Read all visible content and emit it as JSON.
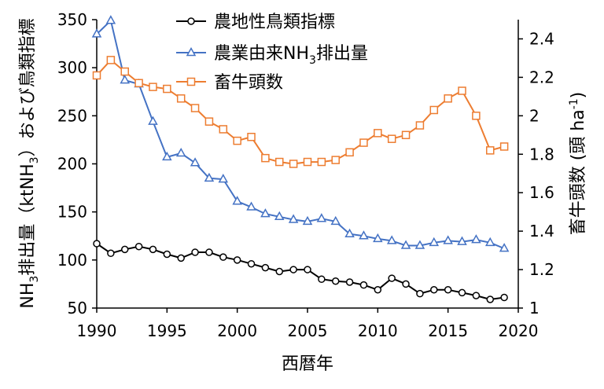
{
  "chart_data": {
    "type": "line",
    "x": [
      1990,
      1991,
      1992,
      1993,
      1994,
      1995,
      1996,
      1997,
      1998,
      1999,
      2000,
      2001,
      2002,
      2003,
      2004,
      2005,
      2006,
      2007,
      2008,
      2009,
      2010,
      2011,
      2012,
      2013,
      2014,
      2015,
      2016,
      2017,
      2018,
      2019
    ],
    "xlabel": "西暦年",
    "ylabel_left_parts": [
      "NH",
      "3",
      "排出量（ktNH",
      "3",
      "）および鳥類指標"
    ],
    "ylabel_right_parts": [
      "畜牛頭数 (頭 ha",
      "-1",
      ")"
    ],
    "xlim": [
      1990,
      2020
    ],
    "ylim_left": [
      50,
      350
    ],
    "ylim_right": [
      1.0,
      2.5
    ],
    "x_ticks": [
      "1990",
      "1995",
      "2000",
      "2005",
      "2010",
      "2015",
      "2020"
    ],
    "y_ticks_left": [
      "50",
      "100",
      "150",
      "200",
      "250",
      "300",
      "350"
    ],
    "y_ticks_right": [
      "1",
      "1.2",
      "1.4",
      "1.6",
      "1.8",
      "2",
      "2.2",
      "2.4"
    ],
    "grid": false,
    "legend_position": "top-center",
    "series": [
      {
        "name": "農地性鳥類指標",
        "axis": "left",
        "color": "#000000",
        "marker": "circle",
        "values": [
          117,
          107,
          111,
          114,
          111,
          106,
          102,
          108,
          108,
          103,
          100,
          96,
          92,
          88,
          90,
          90,
          80,
          78,
          77,
          74,
          69,
          81,
          75,
          65,
          69,
          69,
          66,
          63,
          59,
          61
        ]
      },
      {
        "name_parts": [
          "農業由来NH",
          "3",
          "排出量"
        ],
        "axis": "left",
        "color": "#4472C4",
        "marker": "triangle",
        "values": [
          335,
          349,
          287,
          283,
          244,
          207,
          211,
          201,
          185,
          184,
          161,
          155,
          148,
          145,
          142,
          140,
          143,
          140,
          127,
          125,
          122,
          120,
          115,
          115,
          118,
          120,
          119,
          121,
          118,
          112
        ]
      },
      {
        "name": "畜牛頭数",
        "axis": "right",
        "color": "#ED7D31",
        "marker": "square",
        "values": [
          2.21,
          2.29,
          2.23,
          2.17,
          2.15,
          2.14,
          2.09,
          2.04,
          1.97,
          1.93,
          1.87,
          1.89,
          1.78,
          1.76,
          1.75,
          1.76,
          1.76,
          1.77,
          1.81,
          1.86,
          1.91,
          1.88,
          1.9,
          1.95,
          2.03,
          2.09,
          2.13,
          2.0,
          1.82,
          1.84
        ]
      }
    ]
  }
}
